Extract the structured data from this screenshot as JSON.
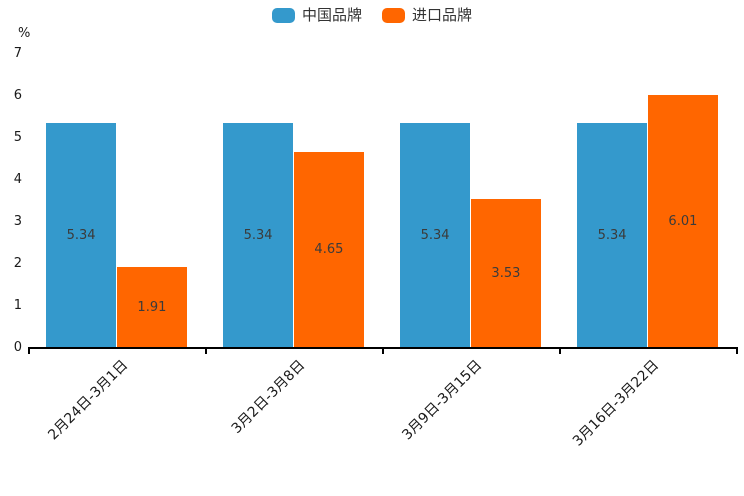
{
  "chart_data": {
    "type": "bar",
    "title": "",
    "ylabel": "%",
    "xlabel": "",
    "ylim": [
      0,
      7
    ],
    "yticks": [
      0,
      1,
      2,
      3,
      4,
      5,
      6,
      7
    ],
    "grid": false,
    "legend_position": "top",
    "x_tick_rotation_deg": 45,
    "categories": [
      "2月24日-3月1日",
      "3月2日-3月8日",
      "3月9日-3月15日",
      "3月16日-3月22日"
    ],
    "series": [
      {
        "name": "中国品牌",
        "color": "#3499CC",
        "values": [
          5.34,
          5.34,
          5.34,
          5.34
        ]
      },
      {
        "name": "进口品牌",
        "color": "#FF6600",
        "values": [
          1.91,
          4.65,
          3.53,
          6.01
        ]
      }
    ],
    "value_label_color": "#3b3b3b",
    "axis_color": "#000000"
  }
}
